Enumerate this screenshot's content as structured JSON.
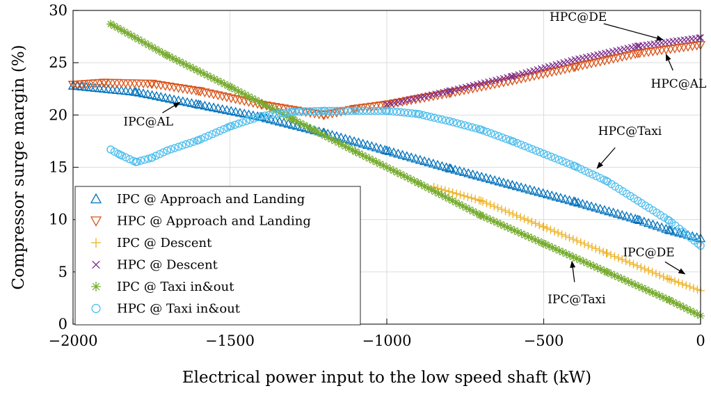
{
  "chart_data": {
    "type": "scatter",
    "title": "",
    "xlabel": "Electrical power input to the low speed shaft (kW)",
    "ylabel": "Compressor surge margin (%)",
    "xlim": [
      -2000,
      0
    ],
    "ylim": [
      0,
      30
    ],
    "xticks": [
      -2000,
      -1500,
      -1000,
      -500,
      0
    ],
    "yticks": [
      0,
      5,
      10,
      15,
      20,
      25,
      30
    ],
    "xtick_labels": [
      "−2000",
      "−1500",
      "−1000",
      "−500",
      "0"
    ],
    "ytick_labels": [
      "0",
      "5",
      "10",
      "15",
      "20",
      "25",
      "30"
    ],
    "grid": true,
    "legend_position": "bottom-left",
    "series": [
      {
        "name": "IPC @ Approach and Landing",
        "marker": "triangle-up",
        "color": "#0072BD",
        "x": [
          -2000,
          -1800,
          -1600,
          -1400,
          -1200,
          -1000,
          -800,
          -600,
          -400,
          -200,
          -100,
          0
        ],
        "y": [
          22.8,
          22.2,
          21.0,
          19.8,
          18.3,
          16.6,
          14.9,
          13.3,
          11.7,
          10.0,
          9.0,
          8.2
        ]
      },
      {
        "name": "HPC @ Approach and Landing",
        "marker": "triangle-down",
        "color": "#D95319",
        "x": [
          -2000,
          -1900,
          -1750,
          -1600,
          -1400,
          -1200,
          -1100,
          -1000,
          -800,
          -600,
          -400,
          -200,
          0
        ],
        "y": [
          22.9,
          23.1,
          23.0,
          22.3,
          21.0,
          20.0,
          20.6,
          21.0,
          22.1,
          23.3,
          24.6,
          25.9,
          26.7
        ]
      },
      {
        "name": "IPC @ Descent",
        "marker": "plus",
        "color": "#EDB120",
        "x": [
          -850,
          -700,
          -500,
          -300,
          -100,
          0
        ],
        "y": [
          13.1,
          11.8,
          9.3,
          6.8,
          4.3,
          3.2
        ]
      },
      {
        "name": "HPC @ Descent",
        "marker": "x",
        "color": "#7E2F8E",
        "x": [
          -1000,
          -800,
          -600,
          -400,
          -200,
          0
        ],
        "y": [
          21.0,
          22.3,
          23.7,
          25.3,
          26.6,
          27.4
        ]
      },
      {
        "name": "IPC @ Taxi in&out",
        "marker": "asterisk",
        "color": "#77AC30",
        "x": [
          -1880,
          -1700,
          -1500,
          -1300,
          -1100,
          -900,
          -700,
          -500,
          -300,
          -100,
          0
        ],
        "y": [
          28.7,
          25.7,
          22.7,
          19.6,
          16.5,
          13.5,
          10.4,
          7.7,
          5.0,
          2.3,
          0.8
        ]
      },
      {
        "name": "HPC @ Taxi in&out",
        "marker": "circle",
        "color": "#4DBEEE",
        "x": [
          -1880,
          -1850,
          -1800,
          -1750,
          -1700,
          -1600,
          -1500,
          -1400,
          -1300,
          -1200,
          -1100,
          -1000,
          -900,
          -800,
          -700,
          -600,
          -500,
          -400,
          -300,
          -200,
          -100,
          0
        ],
        "y": [
          16.7,
          16.2,
          15.5,
          15.9,
          16.6,
          17.6,
          18.9,
          19.9,
          20.3,
          20.4,
          20.4,
          20.4,
          20.1,
          19.4,
          18.6,
          17.5,
          16.3,
          15.1,
          13.7,
          11.8,
          9.9,
          7.5
        ]
      }
    ],
    "annotations": [
      {
        "text": "HPC@DE",
        "target": [
          -120,
          27.2
        ],
        "text_at": [
          -390,
          29.0
        ],
        "arrow": true
      },
      {
        "text": "HPC@AL",
        "target": [
          -110,
          25.8
        ],
        "text_at": [
          -70,
          22.6
        ],
        "arrow": true
      },
      {
        "text": "IPC@AL",
        "target": [
          -1660,
          21.2
        ],
        "text_at": [
          -1760,
          19.0
        ],
        "arrow": true
      },
      {
        "text": "HPC@Taxi",
        "target": [
          -330,
          14.9
        ],
        "text_at": [
          -225,
          18.1
        ],
        "arrow": true
      },
      {
        "text": "IPC@DE",
        "target": [
          -50,
          4.8
        ],
        "text_at": [
          -165,
          6.5
        ],
        "arrow": true
      },
      {
        "text": "IPC@Taxi",
        "target": [
          -410,
          6.0
        ],
        "text_at": [
          -395,
          2.0
        ],
        "arrow": true
      }
    ]
  }
}
